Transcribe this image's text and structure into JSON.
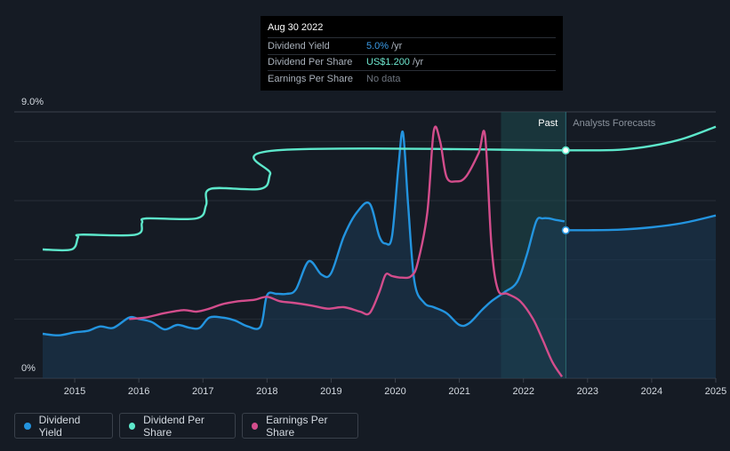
{
  "tooltip": {
    "date": "Aug 30 2022",
    "rows": [
      {
        "label": "Dividend Yield",
        "value": "5.0%",
        "unit": "/yr"
      },
      {
        "label": "Dividend Per Share",
        "value": "US$1.200",
        "unit": "/yr"
      },
      {
        "label": "Earnings Per Share",
        "value": "No data",
        "unit": ""
      }
    ]
  },
  "legend": [
    {
      "label": "Dividend Yield",
      "color": "#2394df"
    },
    {
      "label": "Dividend Per Share",
      "color": "#5de8cb"
    },
    {
      "label": "Earnings Per Share",
      "color": "#d34d8c"
    }
  ],
  "chart_data": {
    "type": "line",
    "ylabel_top": "9.0%",
    "ylabel_bottom": "0%",
    "ylim": [
      0,
      9
    ],
    "xlim": [
      2014.5,
      2025
    ],
    "x_ticks": [
      "2015",
      "2016",
      "2017",
      "2018",
      "2019",
      "2020",
      "2021",
      "2022",
      "2023",
      "2024",
      "2025"
    ],
    "past_label": "Past",
    "forecast_label": "Analysts Forecasts",
    "forecast_start": 2022.66,
    "shaded_region": [
      2021.65,
      2022.66
    ],
    "grid": true,
    "series": [
      {
        "name": "Dividend Yield",
        "color": "#2394df",
        "area": true,
        "x": [
          2014.5,
          2014.75,
          2015.0,
          2015.2,
          2015.4,
          2015.6,
          2015.85,
          2016.0,
          2016.2,
          2016.4,
          2016.6,
          2016.8,
          2016.95,
          2017.1,
          2017.3,
          2017.5,
          2017.7,
          2017.9,
          2018.0,
          2018.15,
          2018.3,
          2018.45,
          2018.65,
          2018.85,
          2019.0,
          2019.2,
          2019.4,
          2019.6,
          2019.75,
          2019.85,
          2019.95,
          2020.05,
          2020.12,
          2020.2,
          2020.3,
          2020.45,
          2020.6,
          2020.8,
          2021.0,
          2021.15,
          2021.35,
          2021.5,
          2021.7,
          2021.9,
          2022.05,
          2022.2,
          2022.3,
          2022.4,
          2022.5,
          2022.64
        ],
        "values": [
          1.5,
          1.45,
          1.55,
          1.6,
          1.75,
          1.7,
          2.05,
          2.0,
          1.9,
          1.65,
          1.8,
          1.7,
          1.7,
          2.05,
          2.05,
          1.95,
          1.75,
          1.75,
          2.8,
          2.85,
          2.85,
          3.0,
          3.95,
          3.5,
          3.55,
          4.8,
          5.6,
          5.9,
          4.8,
          4.55,
          4.8,
          7.15,
          8.3,
          5.9,
          3.25,
          2.55,
          2.4,
          2.2,
          1.8,
          1.85,
          2.3,
          2.6,
          2.9,
          3.25,
          4.15,
          5.3,
          5.4,
          5.4,
          5.35,
          5.3
        ]
      },
      {
        "name": "Dividend Per Share",
        "color": "#5de8cb",
        "area": false,
        "x": [
          2014.5,
          2014.95,
          2015.05,
          2015.1,
          2015.95,
          2016.05,
          2016.12,
          2016.9,
          2017.05,
          2017.12,
          2017.9,
          2018.05,
          2018.15,
          2022.66
        ],
        "values": [
          4.35,
          4.35,
          4.75,
          4.85,
          4.85,
          5.25,
          5.4,
          5.4,
          5.85,
          6.4,
          6.4,
          6.9,
          7.7,
          7.7
        ]
      },
      {
        "name": "Earnings Per Share",
        "color": "#d34d8c",
        "area": false,
        "x": [
          2015.85,
          2016.1,
          2016.4,
          2016.7,
          2016.9,
          2017.1,
          2017.3,
          2017.55,
          2017.8,
          2018.0,
          2018.2,
          2018.4,
          2018.7,
          2018.95,
          2019.2,
          2019.45,
          2019.6,
          2019.75,
          2019.85,
          2019.95,
          2020.1,
          2020.25,
          2020.35,
          2020.5,
          2020.6,
          2020.7,
          2020.8,
          2020.95,
          2021.1,
          2021.3,
          2021.4,
          2021.5,
          2021.6,
          2021.75,
          2021.95,
          2022.15,
          2022.3,
          2022.45,
          2022.6
        ],
        "values": [
          2.0,
          2.05,
          2.2,
          2.3,
          2.25,
          2.35,
          2.5,
          2.6,
          2.65,
          2.75,
          2.6,
          2.55,
          2.45,
          2.35,
          2.4,
          2.25,
          2.2,
          2.9,
          3.5,
          3.45,
          3.4,
          3.45,
          3.9,
          5.6,
          8.35,
          8.0,
          6.8,
          6.65,
          6.8,
          7.6,
          8.2,
          4.5,
          3.0,
          2.85,
          2.6,
          2.0,
          1.3,
          0.55,
          0.05
        ]
      },
      {
        "name": "Dividend Per Share forecast",
        "color": "#5de8cb",
        "area": false,
        "x": [
          2022.66,
          2023.0,
          2023.5,
          2024.0,
          2024.5,
          2025.0
        ],
        "values": [
          7.7,
          7.7,
          7.72,
          7.85,
          8.1,
          8.5
        ]
      },
      {
        "name": "Dividend Yield forecast",
        "color": "#2394df",
        "area": true,
        "x": [
          2022.66,
          2023.0,
          2023.5,
          2024.0,
          2024.5,
          2025.0
        ],
        "values": [
          5.0,
          5.0,
          5.02,
          5.1,
          5.25,
          5.5
        ]
      }
    ],
    "markers": [
      {
        "series": "Dividend Per Share",
        "x": 2022.66,
        "value": 7.7
      },
      {
        "series": "Dividend Yield",
        "x": 2022.66,
        "value": 5.0
      }
    ]
  }
}
